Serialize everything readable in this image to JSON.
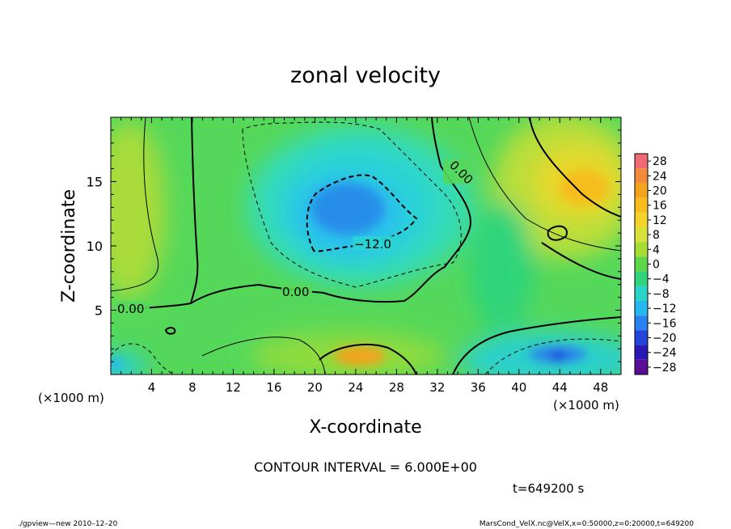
{
  "chart_data": {
    "type": "heatmap",
    "title": "zonal velocity",
    "xlabel": "X-coordinate",
    "ylabel": "Z-coordinate",
    "x_unit_label": "(×1000 m)",
    "y_unit_label": "(×1000 m)",
    "xlim": [
      0,
      50
    ],
    "ylim": [
      0,
      20
    ],
    "x_ticks": [
      4,
      8,
      12,
      16,
      20,
      24,
      28,
      32,
      36,
      40,
      44,
      48
    ],
    "y_ticks": [
      5,
      10,
      15
    ],
    "colorbar": {
      "levels": [
        28,
        24,
        20,
        16,
        12,
        8,
        4,
        0,
        -4,
        -8,
        -12,
        -16,
        -20,
        -24,
        -28
      ],
      "labels": [
        "28",
        "24",
        "20",
        "16",
        "12",
        "8",
        "4",
        "0",
        "−4",
        "−8",
        "−12",
        "−16",
        "−20",
        "−24",
        "−28"
      ],
      "colors": [
        "#f06a75",
        "#f28a3a",
        "#f4a31e",
        "#f6bd1c",
        "#f3d52a",
        "#d8e03a",
        "#a7dc35",
        "#5ed64a",
        "#2fd47c",
        "#2ad3c8",
        "#25b8ef",
        "#2a82ee",
        "#2444dc",
        "#2a18b4",
        "#5a0e96"
      ]
    },
    "contour_labels": [
      "0.00",
      "0.00",
      "0.00",
      "−12.0"
    ],
    "contour_interval_text": "CONTOUR INTERVAL = 6.000E+00",
    "time_text": "t=649200 s",
    "footer_left": "./gpview—new   2010–12–20",
    "footer_right": "MarsCond_VelX.nc@VelX,x=0:50000,z=0:20000,t=649200"
  }
}
